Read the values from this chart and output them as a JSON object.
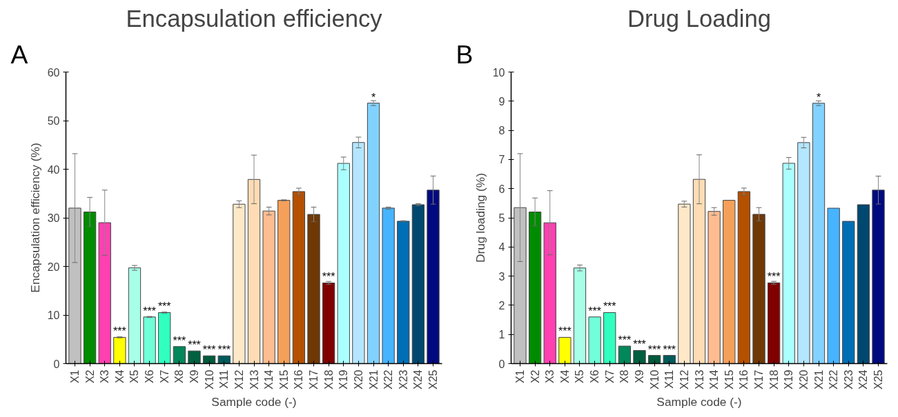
{
  "chart_data": [
    {
      "type": "bar",
      "title": "Encapsulation efficiency",
      "xlabel": "Sample code (-)",
      "ylabel": "Encapsulation efficiency (%)",
      "categories": [
        "X1",
        "X2",
        "X3",
        "X4",
        "X5",
        "X6",
        "X7",
        "X8",
        "X9",
        "X10",
        "X11",
        "X12",
        "X13",
        "X14",
        "X15",
        "X16",
        "X17",
        "X18",
        "X19",
        "X20",
        "X21",
        "X22",
        "X23",
        "X24",
        "X25"
      ],
      "values": [
        32,
        31.2,
        29,
        5.4,
        19.7,
        9.6,
        10.5,
        3.5,
        2.6,
        1.6,
        1.6,
        32.8,
        37.9,
        31.4,
        33.6,
        35.4,
        30.7,
        16.6,
        41.2,
        45.5,
        53.6,
        32,
        29.3,
        32.7,
        35.7
      ],
      "errors": [
        11.2,
        3,
        6.7,
        0.1,
        0.5,
        0.1,
        0.1,
        null,
        null,
        null,
        null,
        0.7,
        5,
        0.8,
        0.1,
        0.7,
        1.5,
        0.3,
        1.3,
        1.1,
        0.5,
        0.2,
        0.1,
        0.2,
        2.9
      ],
      "colors": [
        "#c0c0c0",
        "#008c00",
        "#ff40b0",
        "#ffff00",
        "#a8ffe8",
        "#70ffd8",
        "#30ffc0",
        "#00875a",
        "#006040",
        "#005a3c",
        "#005a5a",
        "#ffe8c8",
        "#ffdcb4",
        "#ffbc90",
        "#f5a05a",
        "#b45000",
        "#703805",
        "#800000",
        "#aaffff",
        "#b4e6ff",
        "#82d2ff",
        "#46b4ff",
        "#006eb4",
        "#004870",
        "#000a80"
      ],
      "ylim": [
        0,
        60
      ],
      "yticks": [
        0,
        10,
        20,
        30,
        40,
        50,
        60
      ],
      "grid": false,
      "annotations": [
        "A",
        {
          "text": "***",
          "x": "X4",
          "y": 5.4
        },
        {
          "text": "***",
          "x": "X6",
          "y": 9.6
        },
        {
          "text": "***",
          "x": "X7",
          "y": 10.5
        },
        {
          "text": "***",
          "x": "X8",
          "y": 3.5
        },
        {
          "text": "***",
          "x": "X9",
          "y": 2.6
        },
        {
          "text": "***",
          "x": "X10",
          "y": 1.6
        },
        {
          "text": "***",
          "x": "X11",
          "y": 1.6
        },
        {
          "text": "***",
          "x": "X18",
          "y": 16.6
        },
        {
          "text": "*",
          "x": "X21",
          "y": 53.6
        }
      ]
    },
    {
      "type": "bar",
      "title": "Drug Loading",
      "xlabel": "Sample code (-)",
      "ylabel": "Drug loading (%)",
      "categories": [
        "X1",
        "X2",
        "X3",
        "X4",
        "X5",
        "X6",
        "X7",
        "X8",
        "X9",
        "X10",
        "X11",
        "X12",
        "X13",
        "X14",
        "X15",
        "X16",
        "X17",
        "X18",
        "X19",
        "X20",
        "X21",
        "X22",
        "X23",
        "X24",
        "X25"
      ],
      "values": [
        5.35,
        5.2,
        4.83,
        0.9,
        3.28,
        1.6,
        1.75,
        0.6,
        0.45,
        0.28,
        0.28,
        5.47,
        6.32,
        5.22,
        5.6,
        5.9,
        5.12,
        2.77,
        6.87,
        7.58,
        8.93,
        5.33,
        4.88,
        5.45,
        5.95
      ],
      "errors": [
        1.85,
        0.48,
        1.1,
        null,
        0.1,
        null,
        null,
        null,
        null,
        null,
        null,
        0.1,
        0.84,
        0.13,
        null,
        0.12,
        0.23,
        0.05,
        0.2,
        0.18,
        0.08,
        null,
        null,
        null,
        0.48
      ],
      "colors": [
        "#c0c0c0",
        "#008c00",
        "#ff40b0",
        "#ffff00",
        "#a8ffe8",
        "#70ffd8",
        "#30ffc0",
        "#00875a",
        "#006040",
        "#005a3c",
        "#005a5a",
        "#ffe8c8",
        "#ffdcb4",
        "#ffbc90",
        "#f5a05a",
        "#b45000",
        "#703805",
        "#800000",
        "#aaffff",
        "#b4e6ff",
        "#82d2ff",
        "#46b4ff",
        "#006eb4",
        "#004870",
        "#000a80"
      ],
      "ylim": [
        0,
        10
      ],
      "yticks": [
        0,
        1,
        2,
        3,
        4,
        5,
        6,
        7,
        8,
        9,
        10
      ],
      "grid": false,
      "annotations": [
        "B",
        {
          "text": "***",
          "x": "X4",
          "y": 0.9
        },
        {
          "text": "***",
          "x": "X6",
          "y": 1.6
        },
        {
          "text": "***",
          "x": "X7",
          "y": 1.75
        },
        {
          "text": "***",
          "x": "X8",
          "y": 0.6
        },
        {
          "text": "***",
          "x": "X9",
          "y": 0.45
        },
        {
          "text": "***",
          "x": "X10",
          "y": 0.28
        },
        {
          "text": "***",
          "x": "X11",
          "y": 0.28
        },
        {
          "text": "***",
          "x": "X18",
          "y": 2.77
        },
        {
          "text": "*",
          "x": "X21",
          "y": 8.93
        }
      ]
    }
  ]
}
